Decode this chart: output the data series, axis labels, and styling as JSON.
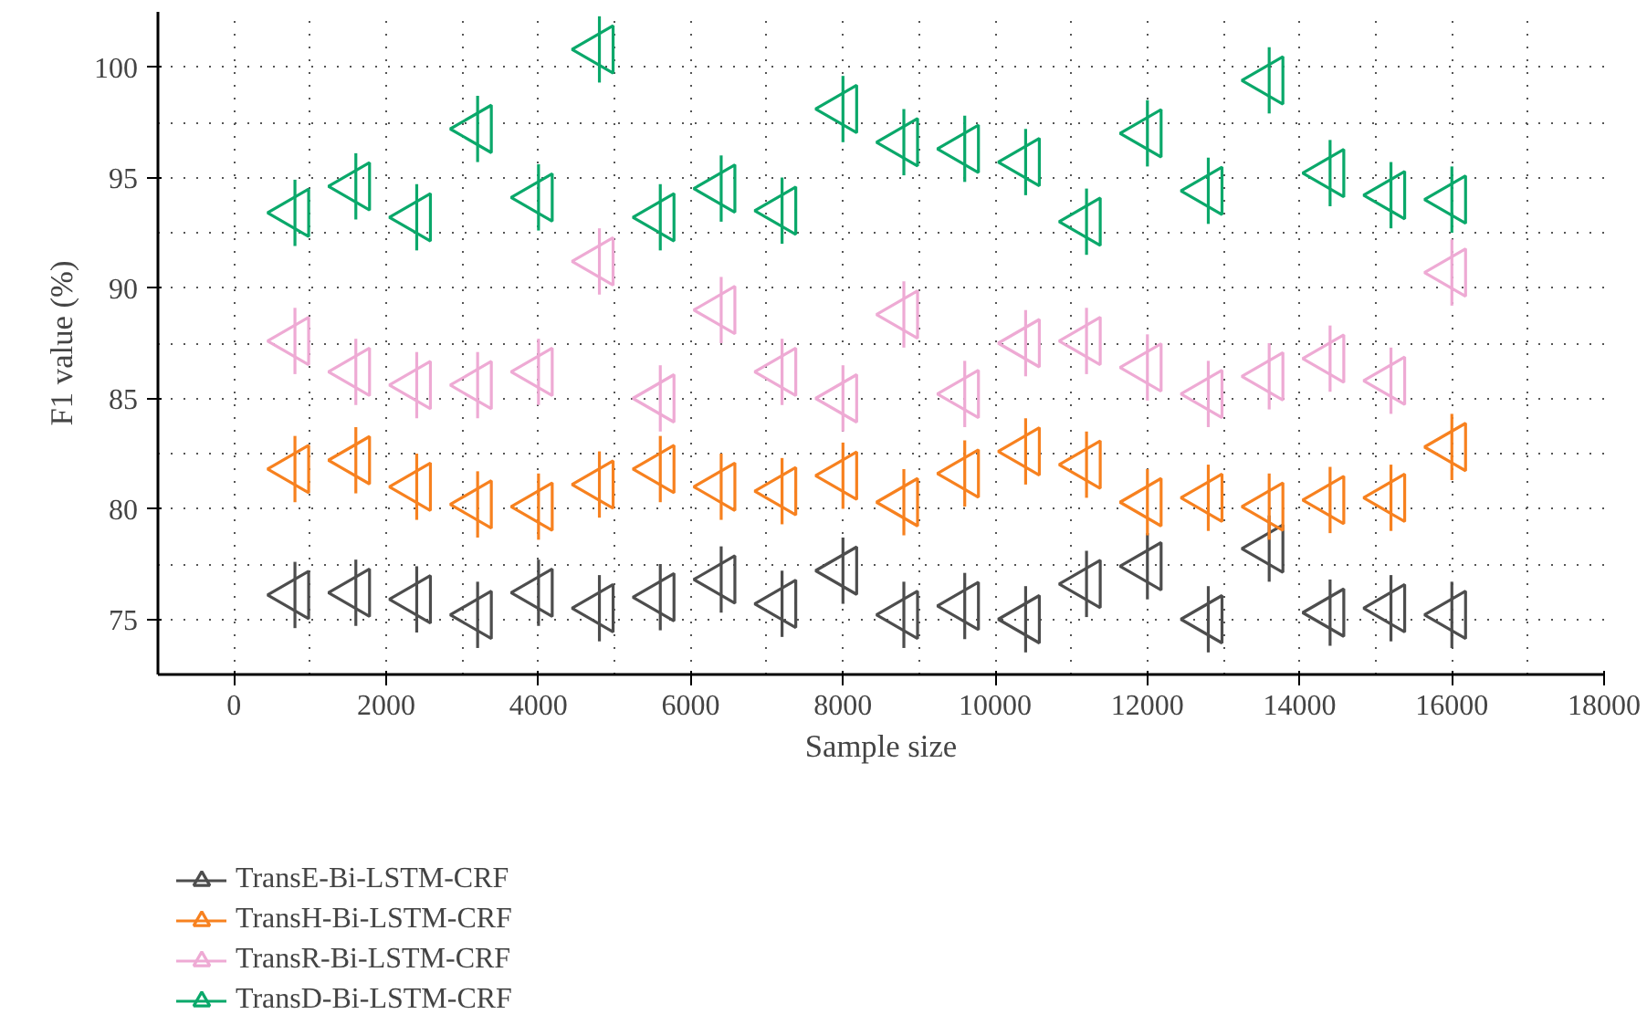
{
  "chart_data": {
    "type": "scatter",
    "xlabel": "Sample size",
    "ylabel": "F1 value (%)",
    "x": [
      800,
      1600,
      2400,
      3200,
      4000,
      4800,
      5600,
      6400,
      7200,
      8000,
      8800,
      9600,
      10400,
      11200,
      12000,
      12800,
      13600,
      14400,
      15200,
      16000
    ],
    "series": [
      {
        "name": "TransE-Bi-LSTM-CRF",
        "color": "#4d4d4d",
        "values": [
          76.1,
          76.2,
          75.9,
          75.2,
          76.2,
          75.5,
          76.0,
          76.8,
          75.7,
          77.2,
          75.2,
          75.6,
          75.0,
          76.6,
          77.4,
          75.0,
          78.2,
          75.3,
          75.5,
          75.2
        ],
        "errors": [
          1.5,
          1.5,
          1.5,
          1.5,
          1.5,
          1.5,
          1.5,
          1.5,
          1.5,
          1.5,
          1.5,
          1.5,
          1.5,
          1.5,
          1.5,
          1.5,
          1.5,
          1.5,
          1.5,
          1.5
        ]
      },
      {
        "name": "TransH-Bi-LSTM-CRF",
        "color": "#f7811f",
        "values": [
          81.8,
          82.2,
          81.0,
          80.2,
          80.1,
          81.1,
          81.8,
          81.0,
          80.8,
          81.5,
          80.3,
          81.6,
          82.6,
          82.0,
          80.3,
          80.5,
          80.1,
          80.4,
          80.5,
          82.8
        ],
        "errors": [
          1.5,
          1.5,
          1.5,
          1.5,
          1.5,
          1.5,
          1.5,
          1.5,
          1.5,
          1.5,
          1.5,
          1.5,
          1.5,
          1.5,
          1.5,
          1.5,
          1.5,
          1.5,
          1.5,
          1.5
        ]
      },
      {
        "name": "TransR-Bi-LSTM-CRF",
        "color": "#eeaad4",
        "values": [
          87.6,
          86.2,
          85.6,
          85.6,
          86.2,
          91.2,
          85.0,
          89.0,
          86.2,
          85.0,
          88.8,
          85.2,
          87.5,
          87.6,
          86.4,
          85.2,
          86.0,
          86.8,
          85.8,
          90.7
        ],
        "errors": [
          1.5,
          1.5,
          1.5,
          1.5,
          1.5,
          1.5,
          1.5,
          1.5,
          1.5,
          1.5,
          1.5,
          1.5,
          1.5,
          1.5,
          1.5,
          1.5,
          1.5,
          1.5,
          1.5,
          1.5
        ]
      },
      {
        "name": "TransD-Bi-LSTM-CRF",
        "color": "#0aa86a",
        "values": [
          93.4,
          94.6,
          93.2,
          97.2,
          94.1,
          100.8,
          93.2,
          94.5,
          93.5,
          98.1,
          96.6,
          96.3,
          95.7,
          93.0,
          97.0,
          94.4,
          99.4,
          95.2,
          94.2,
          94.0
        ],
        "errors": [
          1.5,
          1.5,
          1.5,
          1.5,
          1.5,
          1.5,
          1.5,
          1.5,
          1.5,
          1.5,
          1.5,
          1.5,
          1.5,
          1.5,
          1.5,
          1.5,
          1.5,
          1.5,
          1.5,
          1.5
        ]
      }
    ],
    "xlim": [
      -1000,
      18000
    ],
    "xticks": [
      0,
      2000,
      4000,
      6000,
      8000,
      10000,
      12000,
      14000,
      16000,
      18000
    ],
    "ylim": [
      72.5,
      102.5
    ],
    "yticks": [
      75,
      80,
      85,
      90,
      95,
      100
    ],
    "grid": true,
    "legend": "bottom",
    "marker": "triangle"
  }
}
